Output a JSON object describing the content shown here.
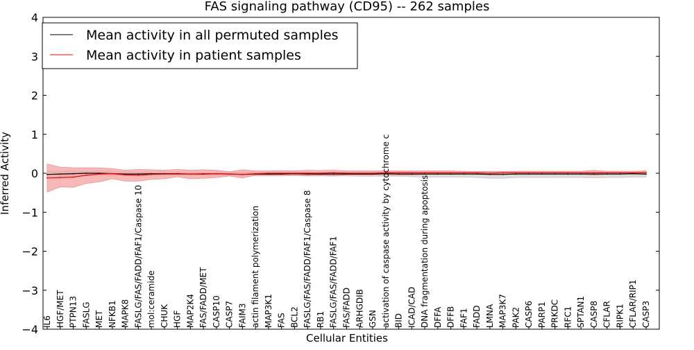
{
  "chart_data": {
    "type": "line",
    "title": "FAS signaling pathway (CD95) -- 262 samples",
    "xlabel": "Cellular Entities",
    "ylabel": "Inferred Activity",
    "ylim": [
      -4,
      4
    ],
    "yticks": [
      4,
      3,
      2,
      1,
      0,
      -1,
      -2,
      -3,
      -4
    ],
    "ytick_labels": [
      "4",
      "3",
      "2",
      "1",
      "0",
      "−1",
      "−2",
      "−3",
      "−4"
    ],
    "grid": false,
    "legend_position": "top-left",
    "categories": [
      "IL6",
      "HGF/MET",
      "PTPN13",
      "FASLG",
      "MET",
      "NFKB1",
      "MAPK8",
      "FASLG/FAS/FADD/FAF1/Caspase 10",
      "mol:ceramide",
      "CHUK",
      "HGF",
      "MAP2K4",
      "FAS/FADD/MET",
      "CASP10",
      "CASP7",
      "FAIM3",
      "actin filament polymerization",
      "MAP3K1",
      "FAS",
      "BCL2",
      "FASLG/FAS/FADD/FAF1/Caspase 8",
      "RB1",
      "FASLG/FAS/FADD/FAF1",
      "FAS/FADD",
      "ARHGDIB",
      "GSN",
      "activation of caspase activity by cytochrome c",
      "BID",
      "ICAD/CAD",
      "DNA fragmentation during apoptosis",
      "DFFA",
      "DFFB",
      "FAF1",
      "FADD",
      "LMNA",
      "MAP3K7",
      "PAK2",
      "CASP6",
      "PARP1",
      "PRKDC",
      "RFC1",
      "SPTAN1",
      "CASP8",
      "CFLAR",
      "RIPK1",
      "CFLAR/RIP1",
      "CASP3"
    ],
    "series": [
      {
        "name": "Mean activity in all permuted samples",
        "color": "#000000",
        "values": [
          -0.03,
          -0.02,
          -0.01,
          0.0,
          0.0,
          -0.01,
          -0.02,
          -0.02,
          -0.01,
          -0.01,
          -0.01,
          -0.02,
          -0.02,
          -0.01,
          -0.02,
          -0.03,
          -0.02,
          -0.02,
          -0.02,
          -0.01,
          -0.02,
          -0.02,
          -0.02,
          -0.02,
          -0.02,
          -0.02,
          -0.01,
          -0.02,
          -0.02,
          -0.02,
          -0.02,
          -0.02,
          -0.02,
          -0.02,
          -0.03,
          -0.03,
          -0.02,
          -0.02,
          -0.02,
          -0.02,
          -0.02,
          -0.02,
          -0.02,
          -0.02,
          -0.02,
          -0.01,
          -0.02
        ],
        "band_lower": [
          -0.12,
          -0.1,
          -0.08,
          -0.07,
          -0.06,
          -0.06,
          -0.07,
          -0.06,
          -0.06,
          -0.06,
          -0.06,
          -0.06,
          -0.06,
          -0.06,
          -0.06,
          -0.07,
          -0.07,
          -0.07,
          -0.07,
          -0.06,
          -0.07,
          -0.07,
          -0.07,
          -0.07,
          -0.08,
          -0.08,
          -0.08,
          -0.08,
          -0.09,
          -0.1,
          -0.1,
          -0.1,
          -0.1,
          -0.11,
          -0.13,
          -0.13,
          -0.11,
          -0.11,
          -0.11,
          -0.11,
          -0.11,
          -0.11,
          -0.12,
          -0.11,
          -0.11,
          -0.1,
          -0.1
        ],
        "band_upper": [
          0.05,
          0.06,
          0.06,
          0.06,
          0.06,
          0.05,
          0.04,
          0.03,
          0.04,
          0.04,
          0.04,
          0.03,
          0.03,
          0.04,
          0.03,
          0.02,
          0.03,
          0.03,
          0.03,
          0.04,
          0.03,
          0.03,
          0.03,
          0.03,
          0.04,
          0.04,
          0.04,
          0.04,
          0.04,
          0.05,
          0.05,
          0.05,
          0.05,
          0.05,
          0.05,
          0.05,
          0.05,
          0.05,
          0.05,
          0.05,
          0.05,
          0.05,
          0.05,
          0.05,
          0.05,
          0.05,
          0.06
        ]
      },
      {
        "name": "Mean activity in patient samples",
        "color": "#ff0000",
        "band_color": "#f4a0a0",
        "values": [
          -0.12,
          -0.11,
          -0.1,
          -0.05,
          -0.02,
          -0.01,
          -0.04,
          -0.05,
          -0.03,
          -0.02,
          -0.02,
          -0.02,
          -0.01,
          -0.01,
          -0.02,
          -0.03,
          -0.01,
          0.0,
          0.0,
          0.0,
          0.0,
          0.0,
          0.01,
          0.0,
          0.0,
          0.0,
          0.01,
          0.01,
          0.01,
          0.01,
          0.01,
          0.01,
          0.01,
          0.01,
          0.0,
          0.01,
          0.01,
          0.01,
          0.01,
          0.01,
          0.01,
          0.01,
          0.01,
          0.01,
          0.01,
          0.01,
          0.02
        ],
        "band_lower": [
          -0.48,
          -0.35,
          -0.36,
          -0.26,
          -0.22,
          -0.14,
          -0.2,
          -0.2,
          -0.16,
          -0.14,
          -0.09,
          -0.14,
          -0.13,
          -0.11,
          -0.07,
          -0.12,
          -0.05,
          -0.05,
          -0.05,
          -0.04,
          -0.06,
          -0.05,
          -0.06,
          -0.04,
          -0.04,
          -0.04,
          -0.04,
          -0.04,
          -0.04,
          -0.03,
          -0.03,
          -0.03,
          -0.02,
          -0.02,
          -0.02,
          -0.02,
          -0.02,
          -0.02,
          -0.02,
          -0.02,
          -0.02,
          -0.02,
          -0.05,
          -0.02,
          -0.02,
          -0.02,
          -0.03
        ],
        "band_upper": [
          0.24,
          0.16,
          0.14,
          0.14,
          0.14,
          0.12,
          0.08,
          0.1,
          0.09,
          0.08,
          0.1,
          0.08,
          0.09,
          0.08,
          0.04,
          0.09,
          0.06,
          0.06,
          0.07,
          0.06,
          0.08,
          0.07,
          0.08,
          0.06,
          0.06,
          0.06,
          0.06,
          0.06,
          0.06,
          0.06,
          0.06,
          0.06,
          0.05,
          0.04,
          0.04,
          0.04,
          0.05,
          0.05,
          0.05,
          0.05,
          0.05,
          0.05,
          0.08,
          0.05,
          0.05,
          0.05,
          0.06
        ]
      }
    ]
  }
}
